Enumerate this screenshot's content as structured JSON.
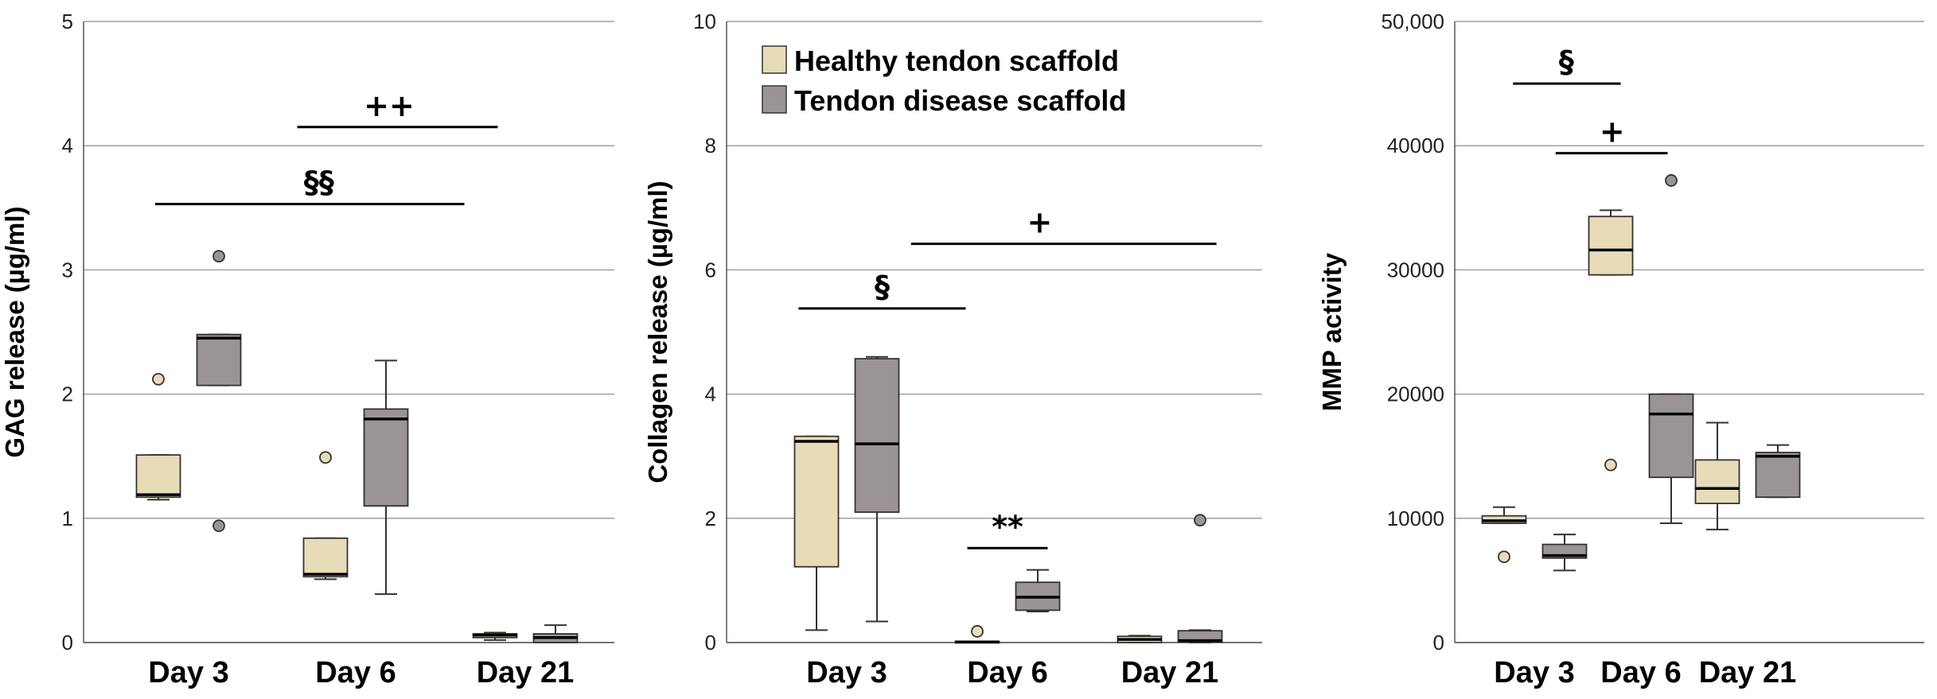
{
  "colors": {
    "healthy": "#e8dcb8",
    "disease": "#9b9495",
    "grid": "#a0a0a0",
    "box_edge": "#333333"
  },
  "legend": [
    {
      "label": "Healthy tendon scaffold",
      "key": "healthy"
    },
    {
      "label": "Tendon disease scaffold",
      "key": "disease"
    }
  ],
  "chart_data": [
    {
      "type": "box",
      "ylabel": "GAG release (µg/ml)",
      "ylim": [
        0,
        5
      ],
      "yticks": [
        0,
        1,
        2,
        3,
        4,
        5
      ],
      "ytick_labels": [
        "0",
        "1",
        "2",
        "3",
        "4",
        "5"
      ],
      "categories": [
        "Day 3",
        "Day 6",
        "Day 21"
      ],
      "series": [
        {
          "name": "Healthy tendon scaffold",
          "key": "healthy",
          "boxes": [
            {
              "min": 1.15,
              "q1": 1.17,
              "median": 1.19,
              "q3": 1.51,
              "max": 1.51,
              "outliers": [
                2.12
              ]
            },
            {
              "min": 0.51,
              "q1": 0.53,
              "median": 0.55,
              "q3": 0.84,
              "max": 0.84,
              "outliers": [
                1.49
              ]
            },
            {
              "min": 0.02,
              "q1": 0.04,
              "median": 0.06,
              "q3": 0.07,
              "max": 0.08,
              "outliers": []
            }
          ]
        },
        {
          "name": "Tendon disease scaffold",
          "key": "disease",
          "boxes": [
            {
              "min": 2.07,
              "q1": 2.07,
              "median": 2.45,
              "q3": 2.48,
              "max": 2.48,
              "outliers": [
                3.11,
                0.94
              ]
            },
            {
              "min": 0.39,
              "q1": 1.1,
              "median": 1.8,
              "q3": 1.88,
              "max": 2.27,
              "outliers": []
            },
            {
              "min": 0.0,
              "q1": 0.0,
              "median": 0.04,
              "q3": 0.07,
              "max": 0.14,
              "outliers": []
            }
          ]
        }
      ],
      "annotations": [
        {
          "text": "++",
          "x_from": 0.65,
          "x_to": 1.85,
          "y": 4.15,
          "text_x": 1.2
        },
        {
          "text": "§§",
          "x_from": -0.2,
          "x_to": 1.65,
          "y": 3.53,
          "text_x": 0.78
        }
      ]
    },
    {
      "type": "box",
      "ylabel": "Collagen release (µg/ml)",
      "ylim": [
        0,
        10
      ],
      "yticks": [
        0,
        2,
        4,
        6,
        8,
        10
      ],
      "ytick_labels": [
        "0",
        "2",
        "4",
        "6",
        "8",
        "10"
      ],
      "categories": [
        "Day 3",
        "Day 6",
        "Day 21"
      ],
      "series": [
        {
          "name": "Healthy tendon scaffold",
          "key": "healthy",
          "boxes": [
            {
              "min": 0.2,
              "q1": 1.22,
              "median": 3.24,
              "q3": 3.32,
              "max": 3.32,
              "outliers": []
            },
            {
              "min": 0.0,
              "q1": 0.0,
              "median": 0.01,
              "q3": 0.02,
              "max": 0.02,
              "outliers": [
                0.18
              ]
            },
            {
              "min": 0.0,
              "q1": 0.0,
              "median": 0.05,
              "q3": 0.1,
              "max": 0.11,
              "outliers": []
            }
          ]
        },
        {
          "name": "Tendon disease scaffold",
          "key": "disease",
          "boxes": [
            {
              "min": 0.34,
              "q1": 2.1,
              "median": 3.2,
              "q3": 4.57,
              "max": 4.6,
              "outliers": []
            },
            {
              "min": 0.5,
              "q1": 0.52,
              "median": 0.73,
              "q3": 0.97,
              "max": 1.17,
              "outliers": []
            },
            {
              "min": 0.0,
              "q1": 0.01,
              "median": 0.03,
              "q3": 0.19,
              "max": 0.2,
              "outliers": [
                1.97
              ]
            }
          ]
        }
      ],
      "annotations": [
        {
          "text": "+",
          "x_from": 0.4,
          "x_to": 2.3,
          "y": 6.42,
          "text_x": 1.2
        },
        {
          "text": "§",
          "x_from": -0.3,
          "x_to": 0.74,
          "y": 5.38,
          "text_x": 0.22
        },
        {
          "text": "**",
          "x_from": 0.75,
          "x_to": 1.25,
          "y": 1.52,
          "text_x": 1.0
        }
      ]
    },
    {
      "type": "box",
      "ylabel": "MMP activity",
      "ylim": [
        0,
        50000
      ],
      "yticks": [
        0,
        10000,
        20000,
        30000,
        40000,
        50000
      ],
      "ytick_labels": [
        "0",
        "10000",
        "20000",
        "30000",
        "40000",
        "50,000"
      ],
      "categories": [
        "Day 3",
        "Day 6",
        "Day 21"
      ],
      "series": [
        {
          "name": "Healthy tendon scaffold",
          "key": "healthy",
          "boxes": [
            {
              "min": 9600,
              "q1": 9600,
              "median": 9800,
              "q3": 10200,
              "max": 10900,
              "outliers": [
                6900
              ]
            },
            {
              "min": 29600,
              "q1": 29600,
              "median": 31600,
              "q3": 34300,
              "max": 34800,
              "outliers": [
                14300
              ]
            },
            {
              "min": 9100,
              "q1": 11200,
              "median": 12400,
              "q3": 14700,
              "max": 17700,
              "outliers": []
            }
          ]
        },
        {
          "name": "Tendon disease scaffold",
          "key": "disease",
          "boxes": [
            {
              "min": 5800,
              "q1": 6800,
              "median": 7000,
              "q3": 7900,
              "max": 8700,
              "outliers": []
            },
            {
              "min": 9600,
              "q1": 13300,
              "median": 18400,
              "q3": 20000,
              "max": 20000,
              "outliers": [
                37200
              ]
            },
            {
              "min": 11700,
              "q1": 11700,
              "median": 15000,
              "q3": 15300,
              "max": 15900,
              "outliers": []
            }
          ]
        }
      ],
      "annotations": [
        {
          "text": "§",
          "x_from": -0.2,
          "x_to": 0.81,
          "y": 45000,
          "text_x": 0.3
        },
        {
          "text": "+",
          "x_from": 0.2,
          "x_to": 1.25,
          "y": 39400,
          "text_x": 0.73
        }
      ]
    }
  ]
}
